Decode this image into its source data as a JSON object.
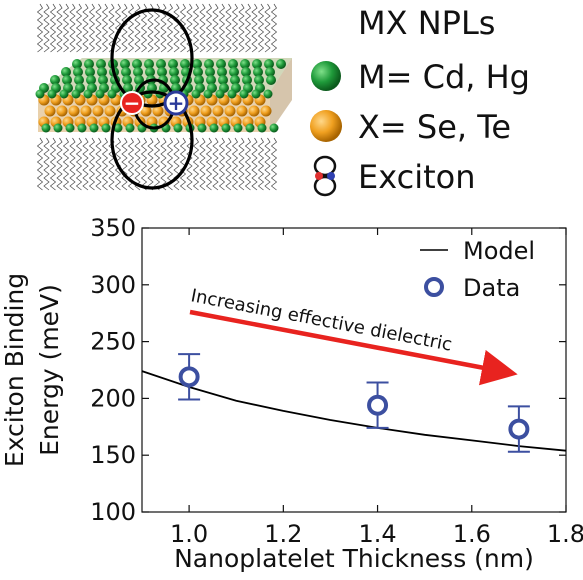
{
  "schematic": {
    "title": "MX NPLs",
    "legend": [
      {
        "label": "M= Cd, Hg",
        "icon": "green-sphere-icon",
        "color": "#1f9a3a"
      },
      {
        "label": "X= Se, Te",
        "icon": "orange-sphere-icon",
        "color": "#f0a020"
      },
      {
        "label": "Exciton",
        "icon": "exciton-icon"
      }
    ],
    "charges": {
      "minus": "−",
      "plus": "+"
    }
  },
  "chart_data": {
    "type": "scatter",
    "xlabel": "Nanoplatelet Thickness (nm)",
    "ylabel_lines": [
      "Exciton Binding",
      "Energy (meV)"
    ],
    "xlim": [
      0.9,
      1.8
    ],
    "ylim": [
      100,
      350
    ],
    "xticks": [
      1.0,
      1.2,
      1.4,
      1.6,
      1.8
    ],
    "xtick_labels": [
      "1.0",
      "1.2",
      "1.4",
      "1.6",
      "1.8"
    ],
    "yticks": [
      100,
      150,
      200,
      250,
      300,
      350
    ],
    "ytick_labels": [
      "100",
      "150",
      "200",
      "250",
      "300",
      "350"
    ],
    "grid": false,
    "legend_position": "top-right",
    "series": [
      {
        "name": "Model",
        "kind": "line",
        "color": "#000000",
        "x": [
          0.9,
          1.0,
          1.1,
          1.2,
          1.3,
          1.4,
          1.5,
          1.6,
          1.7,
          1.8
        ],
        "y": [
          224,
          210,
          198,
          189,
          181,
          174,
          168,
          163,
          158,
          154
        ]
      },
      {
        "name": "Data",
        "kind": "scatter-errorbar",
        "color": "#3c4fa0",
        "x": [
          1.0,
          1.4,
          1.7
        ],
        "y": [
          219,
          194,
          173
        ],
        "err": [
          20,
          20,
          20
        ]
      }
    ],
    "annotation": {
      "text": "Increasing effective dielectric",
      "color": "#e8231f"
    }
  }
}
